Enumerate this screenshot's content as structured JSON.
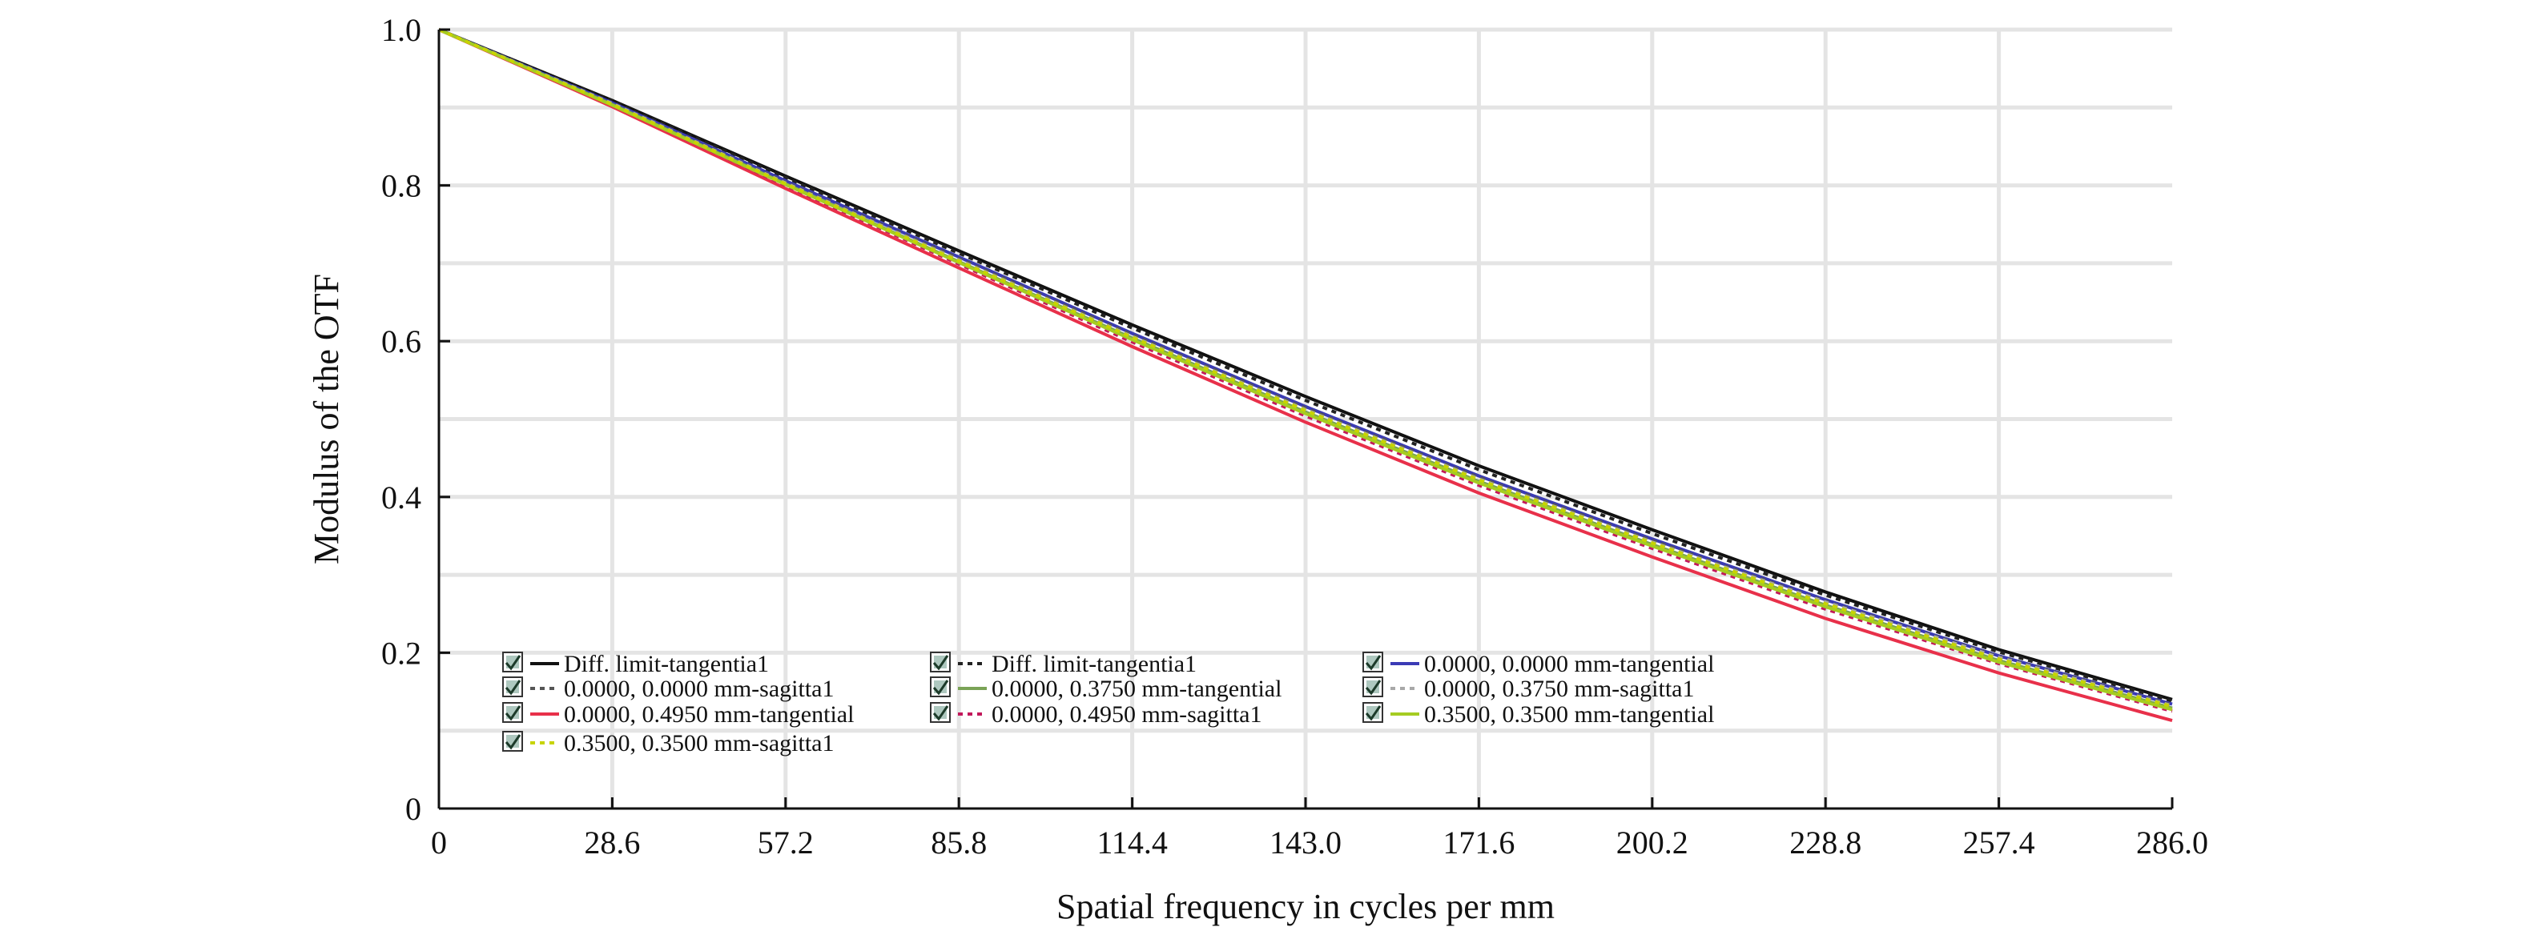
{
  "chart_data": {
    "type": "line",
    "title": "",
    "xlabel": "Spatial frequency in cycles per mm",
    "ylabel": "Modulus of the OTF",
    "xlim": [
      0,
      286.0
    ],
    "ylim": [
      0,
      1.0
    ],
    "x_ticks": [
      "0",
      "28.6",
      "57.2",
      "85.8",
      "114.4",
      "143.0",
      "171.6",
      "200.2",
      "228.8",
      "257.4",
      "286.0"
    ],
    "y_ticks": [
      "0",
      "0.2",
      "0.4",
      "0.6",
      "0.8",
      "1.0"
    ],
    "grid": true,
    "legend_position": "bottom-left",
    "x": [
      0,
      28.6,
      57.2,
      85.8,
      114.4,
      143.0,
      171.6,
      200.2,
      228.8,
      257.4,
      286.0
    ],
    "series": [
      {
        "name": "Diff. limit-tangentia1",
        "color": "#111111",
        "style": "solid",
        "values": [
          1.0,
          0.909,
          0.812,
          0.716,
          0.621,
          0.529,
          0.44,
          0.358,
          0.278,
          0.204,
          0.14
        ]
      },
      {
        "name": "Diff. limit-tangentia1",
        "color": "#222222",
        "style": "dotted",
        "values": [
          1.0,
          0.908,
          0.81,
          0.713,
          0.617,
          0.524,
          0.435,
          0.353,
          0.274,
          0.201,
          0.138
        ]
      },
      {
        "name": "0.0000, 0.0000 mm-tangential",
        "color": "#3b3bb5",
        "style": "solid",
        "values": [
          1.0,
          0.906,
          0.806,
          0.708,
          0.61,
          0.516,
          0.427,
          0.346,
          0.268,
          0.196,
          0.134
        ]
      },
      {
        "name": "0.0000, 0.0000 mm-sagitta1",
        "color": "#555555",
        "style": "dotted",
        "values": [
          1.0,
          0.905,
          0.804,
          0.706,
          0.608,
          0.514,
          0.425,
          0.344,
          0.266,
          0.195,
          0.133
        ]
      },
      {
        "name": "0.0000, 0.3750 mm-tangential",
        "color": "#7aa356",
        "style": "solid",
        "values": [
          1.0,
          0.904,
          0.802,
          0.702,
          0.604,
          0.509,
          0.42,
          0.339,
          0.261,
          0.19,
          0.129
        ]
      },
      {
        "name": "0.0000, 0.3750 mm-sagitta1",
        "color": "#a8a8a8",
        "style": "dotted",
        "values": [
          1.0,
          0.905,
          0.803,
          0.704,
          0.606,
          0.512,
          0.423,
          0.342,
          0.265,
          0.194,
          0.132
        ]
      },
      {
        "name": "0.0000, 0.4950 mm-tangential",
        "color": "#e8304a",
        "style": "solid",
        "values": [
          1.0,
          0.901,
          0.796,
          0.694,
          0.593,
          0.496,
          0.405,
          0.323,
          0.244,
          0.174,
          0.113
        ]
      },
      {
        "name": "0.0000, 0.4950 mm-sagitta1",
        "color": "#c2185b",
        "style": "dotted",
        "values": [
          1.0,
          0.903,
          0.8,
          0.699,
          0.599,
          0.504,
          0.415,
          0.334,
          0.256,
          0.186,
          0.125
        ]
      },
      {
        "name": "0.3500, 0.3500 mm-tangential",
        "color": "#a5cc22",
        "style": "solid",
        "values": [
          1.0,
          0.903,
          0.801,
          0.701,
          0.602,
          0.507,
          0.418,
          0.337,
          0.259,
          0.188,
          0.127
        ]
      },
      {
        "name": "0.3500, 0.3500 mm-sagitta1",
        "color": "#c7d400",
        "style": "dotted",
        "values": [
          1.0,
          0.904,
          0.802,
          0.703,
          0.605,
          0.511,
          0.422,
          0.341,
          0.263,
          0.192,
          0.131
        ]
      }
    ]
  }
}
